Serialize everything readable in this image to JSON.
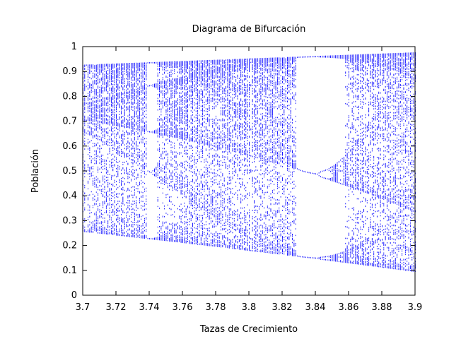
{
  "chart_data": {
    "type": "scatter",
    "title": "Diagrama de Bifurcación",
    "xlabel": "Tazas de Crecimiento",
    "ylabel": "Población",
    "xlim": [
      3.7,
      3.9
    ],
    "ylim": [
      0,
      1
    ],
    "x_ticks": [
      "3.7",
      "3.72",
      "3.74",
      "3.76",
      "3.78",
      "3.8",
      "3.82",
      "3.84",
      "3.86",
      "3.88",
      "3.9"
    ],
    "y_ticks": [
      "0",
      "0.1",
      "0.2",
      "0.3",
      "0.4",
      "0.5",
      "0.6",
      "0.7",
      "0.8",
      "0.9",
      "1"
    ],
    "grid": false,
    "legend": "none",
    "series": [
      {
        "color": "#0000ff",
        "marker": "dot",
        "r_range": [
          3.7,
          3.9
        ],
        "r_step": 0.001,
        "map": "logistic"
      }
    ]
  }
}
